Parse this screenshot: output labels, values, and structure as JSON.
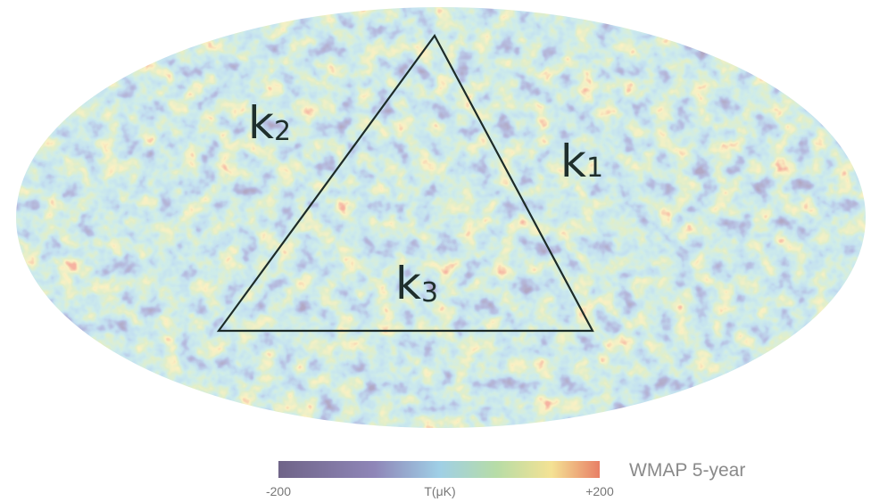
{
  "map": {
    "labels": [
      {
        "letter": "k",
        "index": "1"
      },
      {
        "letter": "k",
        "index": "2"
      },
      {
        "letter": "k",
        "index": "3"
      }
    ]
  },
  "colorbar": {
    "min": "-200",
    "label": "T(μK)",
    "max": "+200"
  },
  "caption": "WMAP 5-year"
}
